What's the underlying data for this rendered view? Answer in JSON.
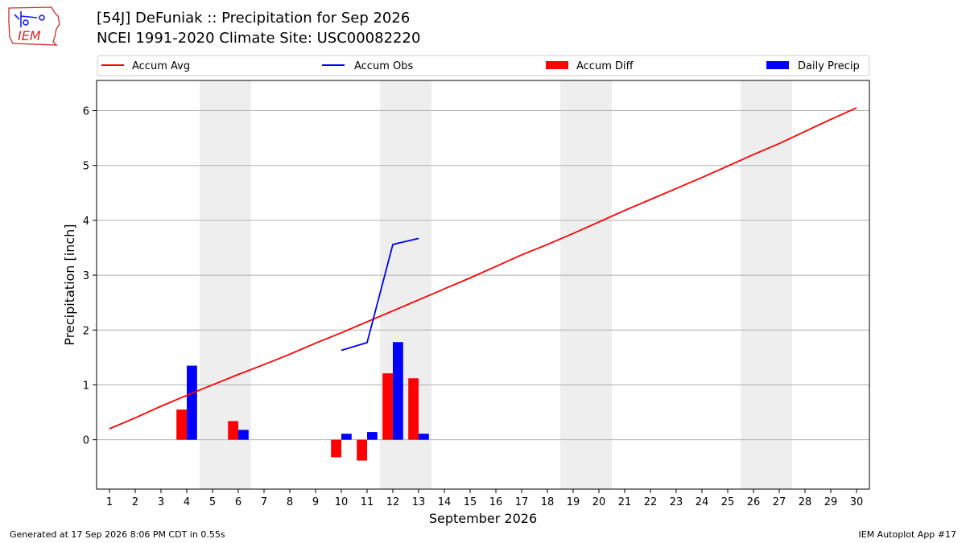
{
  "header": {
    "title_line1": "[54J] DeFuniak :: Precipitation for Sep 2026",
    "title_line2": "NCEI 1991-2020 Climate Site: USC00082220"
  },
  "logo": {
    "text": "IEM",
    "color": "#d62728"
  },
  "footer": {
    "left": "Generated at 17 Sep 2026 8:06 PM CDT in 0.55s",
    "right": "IEM Autoplot App #17"
  },
  "colors": {
    "accum_avg": "#ff0000",
    "accum_obs": "#0000ff",
    "accum_diff": "#ff0000",
    "daily_precip": "#0000ff",
    "weekend_shade": "#eeeeee",
    "grid": "#b0b0b0"
  },
  "chart_data": {
    "type": "bar",
    "xlabel": "September 2026",
    "ylabel": "Precipitation [inch]",
    "xlim": [
      0.5,
      30.5
    ],
    "ylim": [
      -0.9,
      6.55
    ],
    "x_ticks": [
      1,
      2,
      3,
      4,
      5,
      6,
      7,
      8,
      9,
      10,
      11,
      12,
      13,
      14,
      15,
      16,
      17,
      18,
      19,
      20,
      21,
      22,
      23,
      24,
      25,
      26,
      27,
      28,
      29,
      30
    ],
    "y_ticks": [
      0,
      1,
      2,
      3,
      4,
      5,
      6
    ],
    "grid": "horizontal",
    "legend_position": "top",
    "weekend_days": [
      5,
      6,
      12,
      13,
      19,
      20,
      26,
      27
    ],
    "legend": [
      {
        "label": "Accum Avg",
        "kind": "line",
        "color": "#ff0000"
      },
      {
        "label": "Accum Obs",
        "kind": "line",
        "color": "#0000ff"
      },
      {
        "label": "Accum Diff",
        "kind": "bar",
        "color": "#ff0000"
      },
      {
        "label": "Daily Precip",
        "kind": "bar",
        "color": "#0000ff"
      }
    ],
    "series": [
      {
        "name": "Accum Avg",
        "kind": "line",
        "x": [
          1,
          2,
          3,
          4,
          5,
          6,
          7,
          8,
          9,
          10,
          11,
          12,
          13,
          14,
          15,
          16,
          17,
          18,
          19,
          20,
          21,
          22,
          23,
          24,
          25,
          26,
          27,
          28,
          29,
          30
        ],
        "values": [
          0.2,
          0.4,
          0.61,
          0.81,
          1.0,
          1.19,
          1.37,
          1.56,
          1.76,
          1.95,
          2.15,
          2.35,
          2.55,
          2.75,
          2.95,
          3.16,
          3.37,
          3.56,
          3.76,
          3.97,
          4.18,
          4.38,
          4.58,
          4.78,
          4.99,
          5.2,
          5.4,
          5.62,
          5.84,
          6.05
        ]
      },
      {
        "name": "Accum Obs",
        "kind": "line",
        "x": [
          10,
          11,
          12,
          13
        ],
        "values": [
          1.63,
          1.77,
          3.56,
          3.67
        ]
      },
      {
        "name": "Accum Diff",
        "kind": "bar",
        "x": [
          4,
          6,
          10,
          11,
          12,
          13
        ],
        "values": [
          0.55,
          0.34,
          -0.32,
          -0.38,
          1.21,
          1.12
        ]
      },
      {
        "name": "Daily Precip",
        "kind": "bar",
        "x": [
          4,
          6,
          10,
          11,
          12,
          13
        ],
        "values": [
          1.35,
          0.18,
          0.11,
          0.14,
          1.78,
          0.11
        ]
      }
    ]
  }
}
